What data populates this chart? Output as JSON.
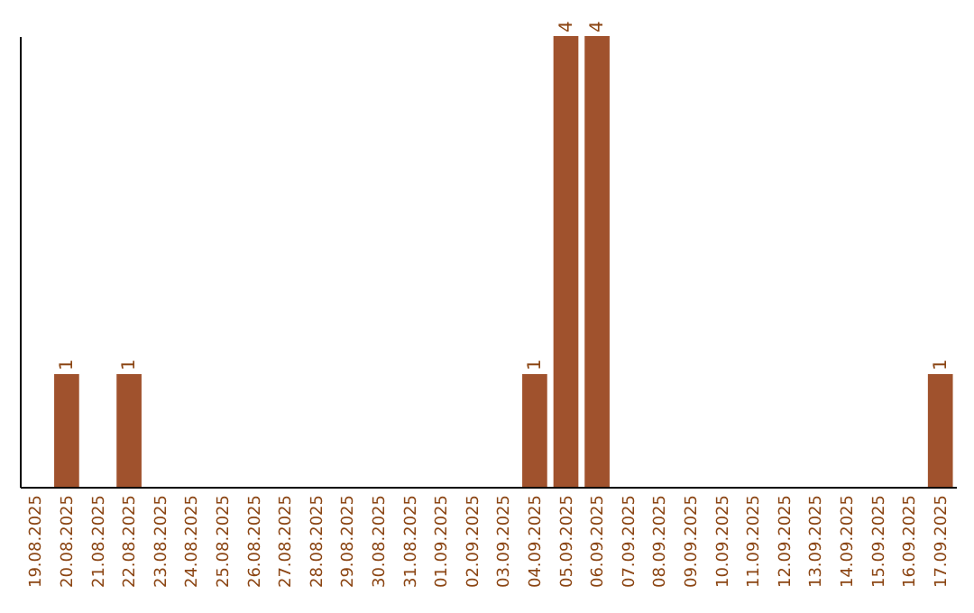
{
  "chart_data": {
    "type": "bar",
    "categories": [
      "19.08.2025",
      "20.08.2025",
      "21.08.2025",
      "22.08.2025",
      "23.08.2025",
      "24.08.2025",
      "25.08.2025",
      "26.08.2025",
      "27.08.2025",
      "28.08.2025",
      "29.08.2025",
      "30.08.2025",
      "31.08.2025",
      "01.09.2025",
      "02.09.2025",
      "03.09.2025",
      "04.09.2025",
      "05.09.2025",
      "06.09.2025",
      "07.09.2025",
      "08.09.2025",
      "09.09.2025",
      "10.09.2025",
      "11.09.2025",
      "12.09.2025",
      "13.09.2025",
      "14.09.2025",
      "15.09.2025",
      "16.09.2025",
      "17.09.2025"
    ],
    "values": [
      0,
      1,
      0,
      1,
      0,
      0,
      0,
      0,
      0,
      0,
      0,
      0,
      0,
      0,
      0,
      0,
      1,
      4,
      4,
      0,
      0,
      0,
      0,
      0,
      0,
      0,
      0,
      0,
      0,
      1
    ],
    "value_labels": [
      null,
      "1",
      null,
      "1",
      null,
      null,
      null,
      null,
      null,
      null,
      null,
      null,
      null,
      null,
      null,
      null,
      "1",
      "4",
      "4",
      null,
      null,
      null,
      null,
      null,
      null,
      null,
      null,
      null,
      null,
      "1"
    ],
    "color": "#a0522d",
    "tick_labels": "x",
    "grid": false
  }
}
